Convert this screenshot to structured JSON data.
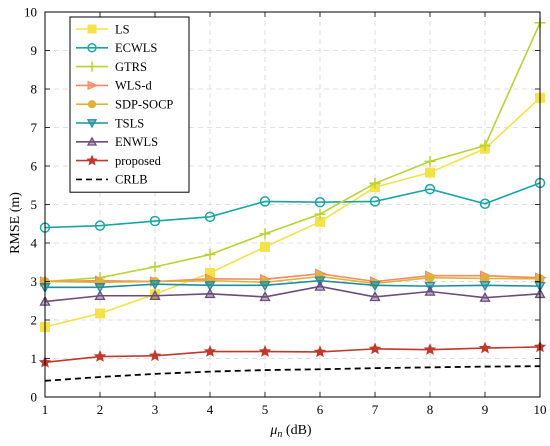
{
  "chart_data": {
    "type": "line",
    "title": "",
    "xlabel": "μ",
    "xlabel_sub": "n",
    "xlabel_unit": " (dB)",
    "ylabel": "RMSE (m)",
    "xlim": [
      1,
      10
    ],
    "ylim": [
      0,
      10
    ],
    "x_ticks": [
      "1",
      "2",
      "3",
      "4",
      "5",
      "6",
      "7",
      "8",
      "9",
      "10"
    ],
    "y_ticks": [
      "0",
      "1",
      "2",
      "3",
      "4",
      "5",
      "6",
      "7",
      "8",
      "9",
      "10"
    ],
    "grid": true,
    "legend_position": "top-left",
    "x": [
      1,
      2,
      3,
      4,
      5,
      6,
      7,
      8,
      9,
      10
    ],
    "series": [
      {
        "name": "LS",
        "color": "#f5e24a",
        "marker": "square",
        "dash": "",
        "values": [
          1.82,
          2.17,
          2.67,
          3.22,
          3.9,
          4.55,
          5.45,
          5.83,
          6.45,
          7.77
        ]
      },
      {
        "name": "ECWLS",
        "color": "#1aa5a5",
        "marker": "circle",
        "dash": "",
        "values": [
          4.4,
          4.45,
          4.57,
          4.68,
          5.08,
          5.06,
          5.08,
          5.4,
          5.02,
          5.56
        ]
      },
      {
        "name": "GTRS",
        "color": "#b7d334",
        "marker": "plus",
        "dash": "",
        "values": [
          3.0,
          3.1,
          3.38,
          3.7,
          4.24,
          4.75,
          5.55,
          6.12,
          6.53,
          9.72
        ]
      },
      {
        "name": "WLS-d",
        "color": "#f08c5e",
        "marker": "triangle-right",
        "dash": "",
        "values": [
          3.0,
          3.02,
          3.0,
          3.07,
          3.06,
          3.2,
          3.0,
          3.15,
          3.15,
          3.1
        ]
      },
      {
        "name": "SDP-SOCP",
        "color": "#e0b03a",
        "marker": "circle-filled",
        "dash": "",
        "values": [
          3.0,
          2.98,
          3.0,
          3.02,
          2.98,
          3.13,
          2.95,
          3.1,
          3.08,
          3.07
        ]
      },
      {
        "name": "TSLS",
        "color": "#1f8f9f",
        "marker": "triangle-down",
        "dash": "",
        "values": [
          2.85,
          2.85,
          2.93,
          2.9,
          2.9,
          3.02,
          2.9,
          2.88,
          2.9,
          2.88
        ]
      },
      {
        "name": "ENWLS",
        "color": "#6b4c7a",
        "marker": "triangle-up",
        "dash": "",
        "values": [
          2.48,
          2.63,
          2.63,
          2.68,
          2.6,
          2.87,
          2.6,
          2.74,
          2.58,
          2.68
        ]
      },
      {
        "name": "proposed",
        "color": "#c0392b",
        "marker": "star",
        "dash": "",
        "values": [
          0.9,
          1.05,
          1.07,
          1.18,
          1.18,
          1.17,
          1.25,
          1.23,
          1.27,
          1.3
        ]
      },
      {
        "name": "CRLB",
        "color": "#000000",
        "marker": "none",
        "dash": "6,4",
        "values": [
          0.42,
          0.52,
          0.6,
          0.66,
          0.7,
          0.72,
          0.75,
          0.77,
          0.79,
          0.8
        ]
      }
    ]
  }
}
